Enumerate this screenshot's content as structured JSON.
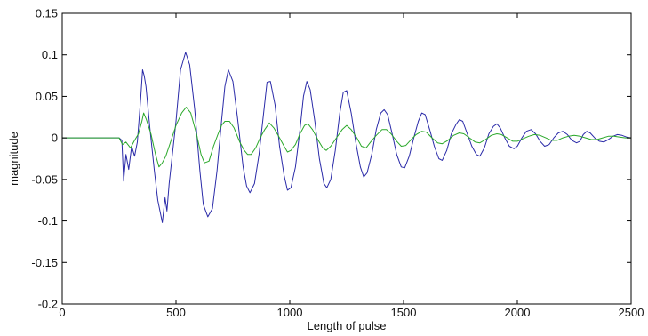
{
  "chart_data": {
    "type": "line",
    "title": "",
    "xlabel": "Length of pulse",
    "ylabel": "magnitude",
    "xlim": [
      0,
      2500
    ],
    "ylim": [
      -0.2,
      0.15
    ],
    "x_ticks": [
      0,
      500,
      1000,
      1500,
      2000,
      2500
    ],
    "x_tick_labels": [
      "0",
      "500",
      "1000",
      "1500",
      "2000",
      "2500"
    ],
    "y_ticks": [
      -0.2,
      -0.15,
      -0.1,
      -0.05,
      0,
      0.05,
      0.1,
      0.15
    ],
    "y_tick_labels": [
      "-0.2",
      "-0.15",
      "-0.1",
      "-0.05",
      "0",
      "0.05",
      "0.1",
      "0.15"
    ],
    "grid": false,
    "legend": "none",
    "series": [
      {
        "color": "#2a2aa8",
        "points": [
          [
            0,
            0
          ],
          [
            250,
            0
          ],
          [
            262,
            -0.003
          ],
          [
            270,
            -0.052
          ],
          [
            280,
            -0.02
          ],
          [
            292,
            -0.038
          ],
          [
            305,
            -0.01
          ],
          [
            318,
            -0.022
          ],
          [
            330,
            -0.005
          ],
          [
            345,
            0.048
          ],
          [
            353,
            0.082
          ],
          [
            360,
            0.075
          ],
          [
            368,
            0.062
          ],
          [
            385,
            0.012
          ],
          [
            405,
            -0.04
          ],
          [
            420,
            -0.075
          ],
          [
            440,
            -0.102
          ],
          [
            452,
            -0.072
          ],
          [
            460,
            -0.088
          ],
          [
            470,
            -0.055
          ],
          [
            500,
            0.02
          ],
          [
            520,
            0.082
          ],
          [
            542,
            0.103
          ],
          [
            560,
            0.088
          ],
          [
            582,
            0.035
          ],
          [
            605,
            -0.04
          ],
          [
            620,
            -0.08
          ],
          [
            640,
            -0.095
          ],
          [
            660,
            -0.085
          ],
          [
            680,
            -0.04
          ],
          [
            700,
            0.02
          ],
          [
            715,
            0.062
          ],
          [
            730,
            0.082
          ],
          [
            750,
            0.068
          ],
          [
            770,
            0.025
          ],
          [
            795,
            -0.035
          ],
          [
            810,
            -0.058
          ],
          [
            825,
            -0.066
          ],
          [
            845,
            -0.055
          ],
          [
            865,
            -0.02
          ],
          [
            885,
            0.03
          ],
          [
            900,
            0.067
          ],
          [
            915,
            0.068
          ],
          [
            935,
            0.04
          ],
          [
            955,
            -0.01
          ],
          [
            975,
            -0.045
          ],
          [
            990,
            -0.063
          ],
          [
            1005,
            -0.06
          ],
          [
            1025,
            -0.035
          ],
          [
            1045,
            0.01
          ],
          [
            1060,
            0.05
          ],
          [
            1075,
            0.068
          ],
          [
            1090,
            0.058
          ],
          [
            1110,
            0.02
          ],
          [
            1130,
            -0.025
          ],
          [
            1150,
            -0.055
          ],
          [
            1163,
            -0.06
          ],
          [
            1180,
            -0.05
          ],
          [
            1200,
            -0.015
          ],
          [
            1220,
            0.03
          ],
          [
            1235,
            0.055
          ],
          [
            1250,
            0.057
          ],
          [
            1270,
            0.03
          ],
          [
            1290,
            -0.005
          ],
          [
            1310,
            -0.035
          ],
          [
            1325,
            -0.047
          ],
          [
            1340,
            -0.042
          ],
          [
            1360,
            -0.02
          ],
          [
            1380,
            0.01
          ],
          [
            1400,
            0.03
          ],
          [
            1415,
            0.034
          ],
          [
            1430,
            0.028
          ],
          [
            1450,
            0.005
          ],
          [
            1470,
            -0.02
          ],
          [
            1490,
            -0.035
          ],
          [
            1505,
            -0.036
          ],
          [
            1525,
            -0.022
          ],
          [
            1545,
            0.0
          ],
          [
            1565,
            0.02
          ],
          [
            1580,
            0.03
          ],
          [
            1595,
            0.028
          ],
          [
            1615,
            0.01
          ],
          [
            1635,
            -0.01
          ],
          [
            1655,
            -0.025
          ],
          [
            1670,
            -0.027
          ],
          [
            1690,
            -0.015
          ],
          [
            1710,
            0.005
          ],
          [
            1730,
            0.016
          ],
          [
            1745,
            0.022
          ],
          [
            1760,
            0.02
          ],
          [
            1780,
            0.005
          ],
          [
            1800,
            -0.01
          ],
          [
            1820,
            -0.02
          ],
          [
            1835,
            -0.022
          ],
          [
            1855,
            -0.012
          ],
          [
            1875,
            0.005
          ],
          [
            1895,
            0.014
          ],
          [
            1910,
            0.017
          ],
          [
            1925,
            0.012
          ],
          [
            1945,
            0.0
          ],
          [
            1965,
            -0.01
          ],
          [
            1985,
            -0.013
          ],
          [
            2000,
            -0.01
          ],
          [
            2020,
            0.0
          ],
          [
            2040,
            0.008
          ],
          [
            2060,
            0.01
          ],
          [
            2080,
            0.005
          ],
          [
            2100,
            -0.004
          ],
          [
            2120,
            -0.01
          ],
          [
            2140,
            -0.008
          ],
          [
            2160,
            0.0
          ],
          [
            2180,
            0.006
          ],
          [
            2200,
            0.008
          ],
          [
            2220,
            0.004
          ],
          [
            2240,
            -0.003
          ],
          [
            2260,
            -0.006
          ],
          [
            2275,
            -0.004
          ],
          [
            2290,
            0.004
          ],
          [
            2305,
            0.008
          ],
          [
            2320,
            0.006
          ],
          [
            2340,
            0.0
          ],
          [
            2360,
            -0.004
          ],
          [
            2380,
            -0.005
          ],
          [
            2400,
            -0.002
          ],
          [
            2420,
            0.002
          ],
          [
            2440,
            0.004
          ],
          [
            2460,
            0.003
          ],
          [
            2480,
            0.001
          ],
          [
            2500,
            0.0
          ]
        ]
      },
      {
        "color": "#2aa82a",
        "points": [
          [
            0,
            0
          ],
          [
            250,
            0
          ],
          [
            265,
            -0.008
          ],
          [
            280,
            -0.005
          ],
          [
            300,
            -0.012
          ],
          [
            318,
            -0.003
          ],
          [
            335,
            0.005
          ],
          [
            350,
            0.02
          ],
          [
            358,
            0.03
          ],
          [
            370,
            0.022
          ],
          [
            390,
            0.005
          ],
          [
            410,
            -0.02
          ],
          [
            425,
            -0.035
          ],
          [
            440,
            -0.03
          ],
          [
            455,
            -0.022
          ],
          [
            470,
            -0.01
          ],
          [
            500,
            0.015
          ],
          [
            525,
            0.03
          ],
          [
            545,
            0.037
          ],
          [
            565,
            0.03
          ],
          [
            590,
            0.005
          ],
          [
            610,
            -0.02
          ],
          [
            625,
            -0.03
          ],
          [
            645,
            -0.028
          ],
          [
            665,
            -0.01
          ],
          [
            685,
            0.005
          ],
          [
            700,
            0.015
          ],
          [
            715,
            0.02
          ],
          [
            735,
            0.02
          ],
          [
            755,
            0.012
          ],
          [
            780,
            -0.005
          ],
          [
            800,
            -0.015
          ],
          [
            815,
            -0.02
          ],
          [
            830,
            -0.02
          ],
          [
            850,
            -0.012
          ],
          [
            870,
            0.0
          ],
          [
            890,
            0.01
          ],
          [
            910,
            0.018
          ],
          [
            930,
            0.012
          ],
          [
            955,
            0.0
          ],
          [
            975,
            -0.01
          ],
          [
            990,
            -0.017
          ],
          [
            1005,
            -0.015
          ],
          [
            1025,
            -0.008
          ],
          [
            1045,
            0.005
          ],
          [
            1065,
            0.015
          ],
          [
            1080,
            0.017
          ],
          [
            1100,
            0.01
          ],
          [
            1125,
            -0.003
          ],
          [
            1145,
            -0.012
          ],
          [
            1160,
            -0.015
          ],
          [
            1180,
            -0.01
          ],
          [
            1205,
            0.0
          ],
          [
            1230,
            0.01
          ],
          [
            1250,
            0.015
          ],
          [
            1270,
            0.01
          ],
          [
            1295,
            0.0
          ],
          [
            1315,
            -0.01
          ],
          [
            1335,
            -0.012
          ],
          [
            1355,
            -0.005
          ],
          [
            1380,
            0.003
          ],
          [
            1405,
            0.01
          ],
          [
            1425,
            0.01
          ],
          [
            1445,
            0.005
          ],
          [
            1470,
            -0.004
          ],
          [
            1490,
            -0.01
          ],
          [
            1510,
            -0.009
          ],
          [
            1530,
            -0.003
          ],
          [
            1555,
            0.004
          ],
          [
            1580,
            0.008
          ],
          [
            1600,
            0.007
          ],
          [
            1625,
            0.0
          ],
          [
            1650,
            -0.006
          ],
          [
            1670,
            -0.007
          ],
          [
            1695,
            -0.003
          ],
          [
            1720,
            0.003
          ],
          [
            1745,
            0.006
          ],
          [
            1765,
            0.005
          ],
          [
            1790,
            0.0
          ],
          [
            1815,
            -0.005
          ],
          [
            1835,
            -0.006
          ],
          [
            1860,
            -0.002
          ],
          [
            1885,
            0.003
          ],
          [
            1910,
            0.005
          ],
          [
            1930,
            0.004
          ],
          [
            1955,
            0.0
          ],
          [
            1980,
            -0.004
          ],
          [
            2000,
            -0.004
          ],
          [
            2025,
            -0.001
          ],
          [
            2050,
            0.002
          ],
          [
            2075,
            0.004
          ],
          [
            2100,
            0.003
          ],
          [
            2125,
            0.0
          ],
          [
            2150,
            -0.003
          ],
          [
            2175,
            -0.003
          ],
          [
            2200,
            0.0
          ],
          [
            2225,
            0.002
          ],
          [
            2250,
            0.003
          ],
          [
            2275,
            0.002
          ],
          [
            2300,
            0.0
          ],
          [
            2325,
            -0.002
          ],
          [
            2350,
            -0.002
          ],
          [
            2375,
            0.0
          ],
          [
            2400,
            0.002
          ],
          [
            2425,
            0.002
          ],
          [
            2450,
            0.001
          ],
          [
            2475,
            0.0
          ],
          [
            2500,
            0.0
          ]
        ]
      }
    ]
  }
}
